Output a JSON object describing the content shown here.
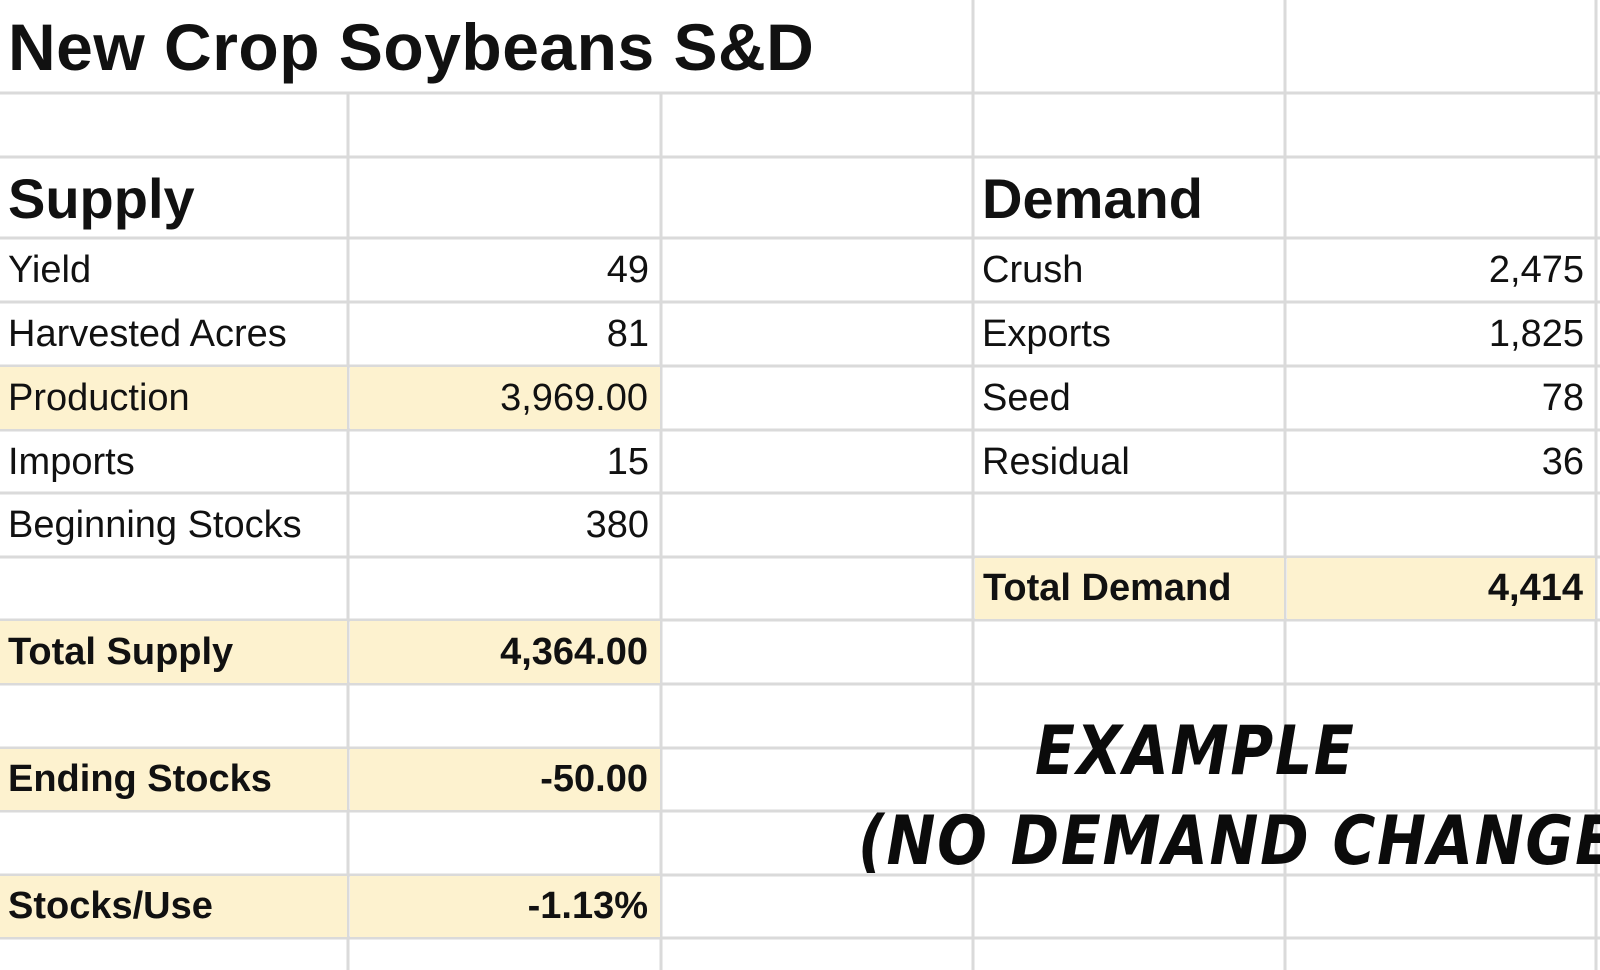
{
  "title": "New Crop Soybeans S&D",
  "supply": {
    "heading": "Supply",
    "rows": [
      {
        "label": "Yield",
        "value": "49"
      },
      {
        "label": "Harvested Acres",
        "value": "81"
      },
      {
        "label": "Production",
        "value": "3,969.00"
      },
      {
        "label": "Imports",
        "value": "15"
      },
      {
        "label": "Beginning Stocks",
        "value": "380"
      }
    ],
    "total": {
      "label": "Total Supply",
      "value": "4,364.00"
    }
  },
  "demand": {
    "heading": "Demand",
    "rows": [
      {
        "label": "Crush",
        "value": "2,475"
      },
      {
        "label": "Exports",
        "value": "1,825"
      },
      {
        "label": "Seed",
        "value": "78"
      },
      {
        "label": "Residual",
        "value": "36"
      }
    ],
    "total": {
      "label": "Total Demand",
      "value": "4,414"
    }
  },
  "ending_stocks": {
    "label": "Ending Stocks",
    "value": "-50.00"
  },
  "stocks_use": {
    "label": "Stocks/Use",
    "value": "-1.13%"
  },
  "overlay": {
    "line1": "EXAMPLE",
    "line2": "(NO DEMAND CHANGE)"
  },
  "colors": {
    "highlight": "#fdf2cf",
    "gridline": "#dadada",
    "text": "#111111"
  }
}
